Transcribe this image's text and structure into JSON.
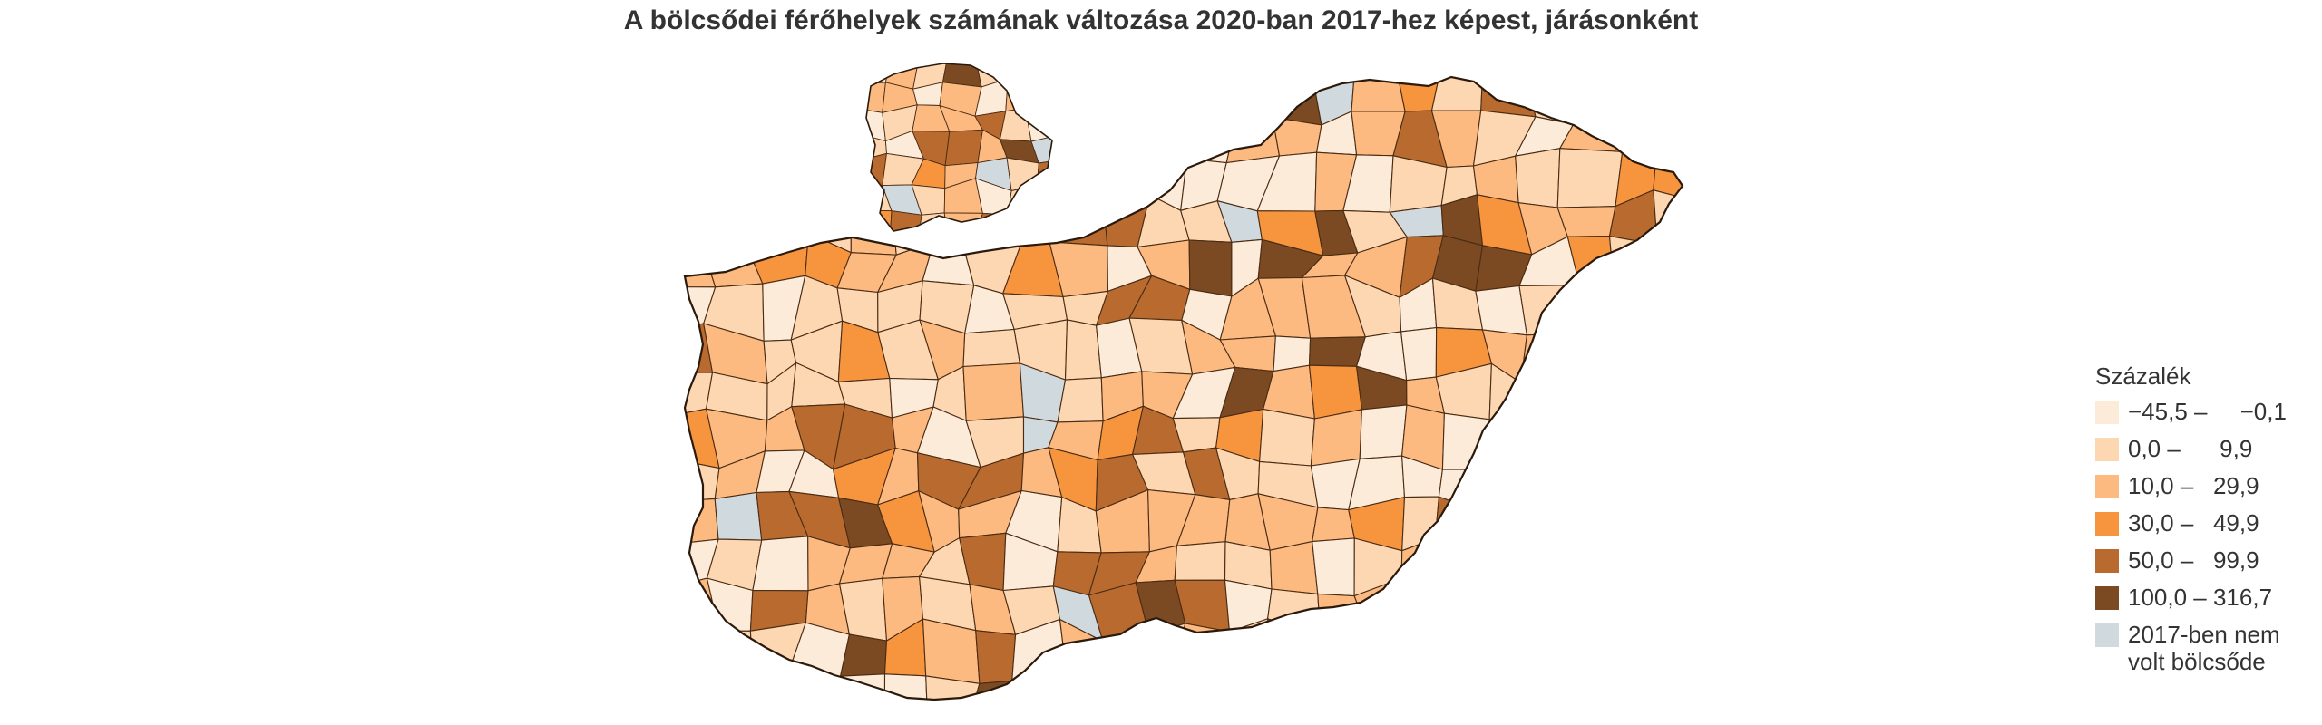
{
  "title": "A bölcsődei férőhelyek számának változása 2020-ban 2017-hez képest, járásonként",
  "legend": {
    "title": "Százalék",
    "items": [
      {
        "label": "−45,5 –     −0,1",
        "color": "#fdebd9"
      },
      {
        "label": "0,0 –      9,9",
        "color": "#fdd7b2"
      },
      {
        "label": "10,0 –   29,9",
        "color": "#fcba80"
      },
      {
        "label": "30,0 –   49,9",
        "color": "#f7953f"
      },
      {
        "label": "50,0 –   99,9",
        "color": "#b96a2f"
      },
      {
        "label": "100,0 – 316,7",
        "color": "#7b4a22"
      },
      {
        "label": "2017-ben nem volt bölcsőde",
        "color": "#cfd9de"
      }
    ]
  }
}
